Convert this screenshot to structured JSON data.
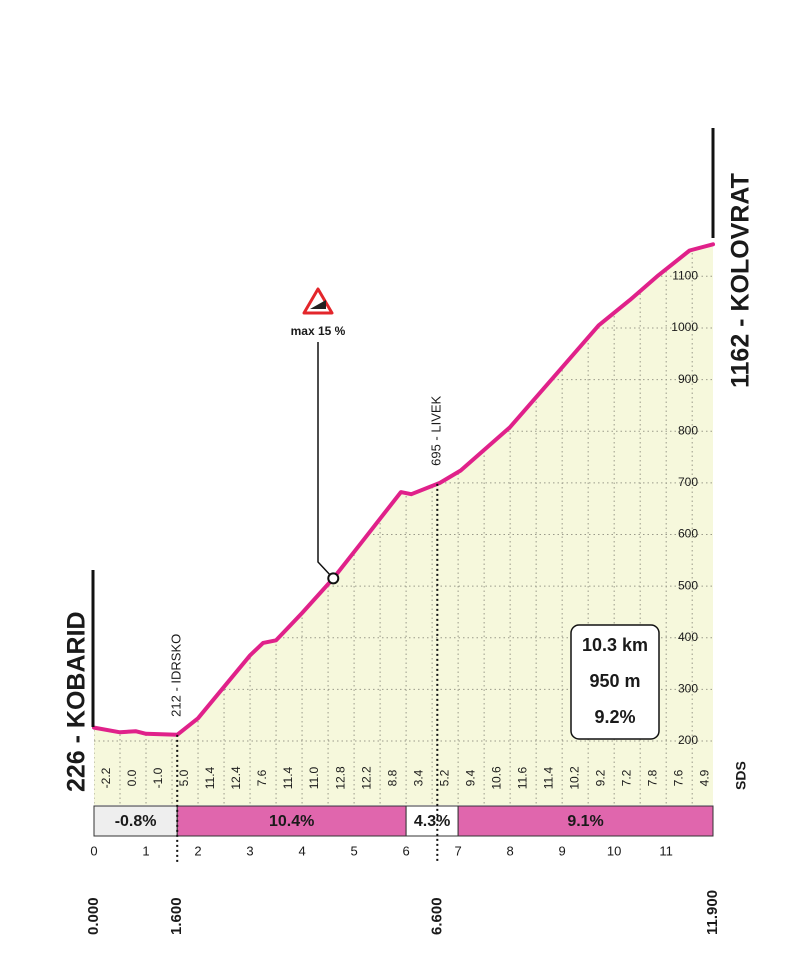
{
  "chart_data": {
    "type": "area",
    "start": "226 - KOBARID",
    "finish": "1162 - KOLOVRAT",
    "x": [
      0,
      0.5,
      0.8,
      1.0,
      1.3,
      1.6,
      2.0,
      3.0,
      3.25,
      3.5,
      4.0,
      4.6,
      5.1,
      5.9,
      6.1,
      6.65,
      7.05,
      8.0,
      8.95,
      9.7,
      10.3,
      10.85,
      11.45,
      11.9
    ],
    "values": [
      226,
      217,
      219,
      214,
      213,
      212,
      244,
      366,
      390,
      395,
      448,
      515,
      579,
      682,
      678,
      700,
      724,
      808,
      918,
      1005,
      1054,
      1102,
      1150,
      1162
    ],
    "color": "#e0218a",
    "fill": "#f6f8dc",
    "xlim": [
      0,
      11.9
    ],
    "ylim": [
      80,
      1180
    ],
    "xticks": [
      0,
      1,
      2,
      3,
      4,
      5,
      6,
      7,
      8,
      9,
      10,
      11
    ],
    "yticks": [
      200,
      300,
      400,
      500,
      600,
      700,
      800,
      900,
      1000,
      1100
    ],
    "grid": true,
    "gradients": [
      "-2.2",
      "0.0",
      "-1.0",
      "5.0",
      "11.4",
      "12.4",
      "7.6",
      "11.4",
      "11.0",
      "12.8",
      "12.2",
      "8.8",
      "3.4",
      "5.2",
      "9.4",
      "10.6",
      "11.6",
      "11.4",
      "10.2",
      "9.2",
      "7.2",
      "7.8",
      "7.6",
      "4.9"
    ],
    "sections": [
      {
        "from": 0,
        "to": 1.6,
        "label": "-0.8%",
        "color": "#eeeeee"
      },
      {
        "from": 1.6,
        "to": 6.0,
        "label": "10.4%",
        "color": "#e066ad"
      },
      {
        "from": 6.0,
        "to": 7.0,
        "label": "4.3%",
        "color": "#ffffff"
      },
      {
        "from": 7.0,
        "to": 11.9,
        "label": "9.1%",
        "color": "#e066ad"
      }
    ],
    "waypoints": [
      {
        "x": 1.6,
        "label": "212 - IDRSKO",
        "distance": "1.600"
      },
      {
        "x": 6.6,
        "label": "695 - LIVEK",
        "distance": "6.600"
      }
    ],
    "start_distance": "0.000",
    "finish_distance": "11.900",
    "max_gradient": {
      "x": 4.6,
      "label": "max 15 %"
    },
    "summary": [
      "10.3 km",
      "950 m",
      "9.2%"
    ],
    "logo": "SDS"
  }
}
